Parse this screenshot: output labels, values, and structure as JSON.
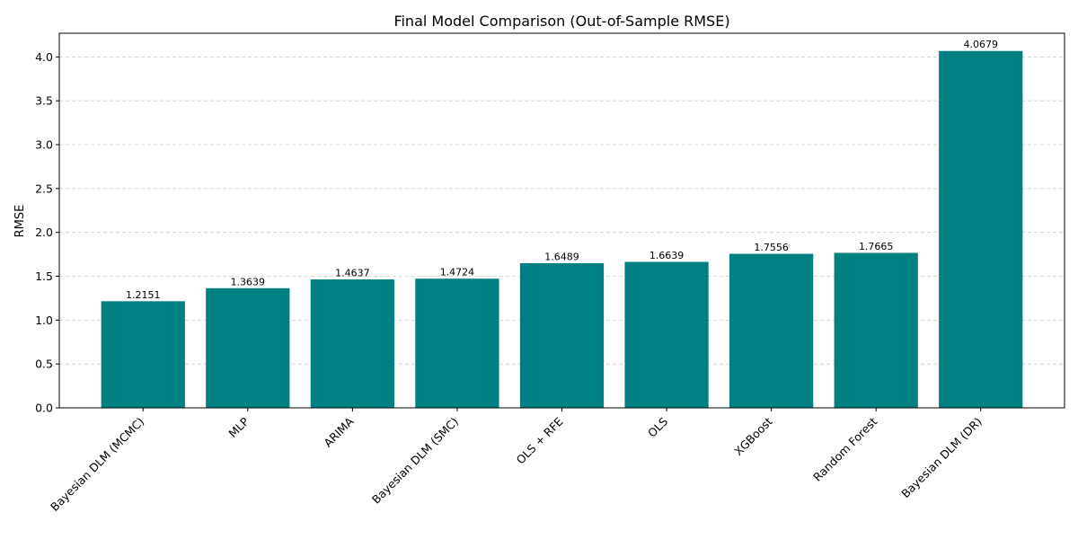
{
  "chart_data": {
    "type": "bar",
    "title": "Final Model Comparison (Out-of-Sample RMSE)",
    "xlabel": "",
    "ylabel": "RMSE",
    "categories": [
      "Bayesian DLM (MCMC)",
      "MLP",
      "ARIMA",
      "Bayesian DLM (SMC)",
      "OLS + RFE",
      "OLS",
      "XGBoost",
      "Random Forest",
      "Bayesian DLM (DR)"
    ],
    "values": [
      1.2151,
      1.3639,
      1.4637,
      1.4724,
      1.6489,
      1.6639,
      1.7556,
      1.7665,
      4.0679
    ],
    "data_labels": [
      "1.2151",
      "1.3639",
      "1.4637",
      "1.4724",
      "1.6489",
      "1.6639",
      "1.7556",
      "1.7665",
      "4.0679"
    ],
    "ylim": [
      0,
      4.27
    ],
    "yticks": [
      0.0,
      0.5,
      1.0,
      1.5,
      2.0,
      2.5,
      3.0,
      3.5,
      4.0
    ],
    "ytick_labels": [
      "0.0",
      "0.5",
      "1.0",
      "1.5",
      "2.0",
      "2.5",
      "3.0",
      "3.5",
      "4.0"
    ],
    "grid": "y-dashed",
    "bar_color": "#008080"
  }
}
